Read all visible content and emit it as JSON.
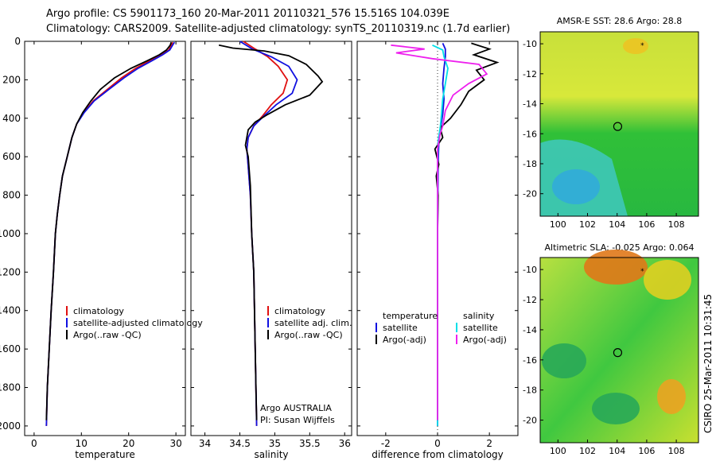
{
  "header": {
    "line1": "Argo profile: CS 5901173_160 20-Mar-2011 20110321_576 15.516S 104.039E",
    "line2": "Climatology: CARS2009. Satellite-adjusted climatology: synTS_20110319.nc (1.7d earlier)"
  },
  "side_label": "CSIRO 25-Mar-2011 10:31:45",
  "colors": {
    "climatology": "#e01010",
    "satellite": "#1010e0",
    "argo": "#000000",
    "sal_sat": "#00e0e8",
    "sal_argo": "#ee20ee"
  },
  "chart_data": [
    {
      "type": "line",
      "xlabel": "temperature",
      "ylabel": "",
      "xlim": [
        -2,
        32
      ],
      "ylim": [
        2050,
        0
      ],
      "x_ticks": [
        0,
        10,
        20,
        30
      ],
      "y_ticks": [
        0,
        200,
        400,
        600,
        800,
        1000,
        1200,
        1400,
        1600,
        1800,
        2000
      ],
      "legend": [
        "climatology",
        "satellite-adjusted climatology",
        "Argo(..raw -QC)"
      ],
      "series": [
        {
          "name": "climatology",
          "points": [
            [
              29.3,
              5
            ],
            [
              29,
              20
            ],
            [
              28.5,
              45
            ],
            [
              27,
              70
            ],
            [
              24.5,
              100
            ],
            [
              21.5,
              140
            ],
            [
              18.5,
              190
            ],
            [
              15.5,
              250
            ],
            [
              12.5,
              310
            ],
            [
              10.5,
              370
            ],
            [
              9,
              430
            ],
            [
              8,
              500
            ],
            [
              7,
              600
            ],
            [
              6,
              700
            ],
            [
              5.4,
              800
            ],
            [
              4.9,
              900
            ],
            [
              4.5,
              1000
            ],
            [
              4.1,
              1200
            ],
            [
              3.6,
              1400
            ],
            [
              3.2,
              1600
            ],
            [
              2.8,
              1800
            ],
            [
              2.6,
              2000
            ]
          ]
        },
        {
          "name": "satellite-adjusted climatology",
          "points": [
            [
              29.7,
              5
            ],
            [
              29.3,
              20
            ],
            [
              28.7,
              45
            ],
            [
              27.2,
              70
            ],
            [
              25,
              100
            ],
            [
              22,
              140
            ],
            [
              19,
              190
            ],
            [
              15.8,
              250
            ],
            [
              12.7,
              310
            ],
            [
              10.6,
              370
            ],
            [
              9,
              430
            ],
            [
              8,
              500
            ],
            [
              7,
              600
            ],
            [
              6,
              700
            ],
            [
              5.4,
              800
            ],
            [
              4.9,
              900
            ],
            [
              4.5,
              1000
            ],
            [
              4.1,
              1200
            ],
            [
              3.6,
              1400
            ],
            [
              3.2,
              1600
            ],
            [
              2.8,
              1800
            ],
            [
              2.6,
              2000
            ]
          ]
        },
        {
          "name": "Argo(..raw -QC)",
          "points": [
            [
              29,
              5
            ],
            [
              28.8,
              20
            ],
            [
              28,
              45
            ],
            [
              26.5,
              70
            ],
            [
              24,
              100
            ],
            [
              20.5,
              140
            ],
            [
              17,
              190
            ],
            [
              14,
              250
            ],
            [
              12,
              310
            ],
            [
              10.3,
              370
            ],
            [
              9,
              430
            ],
            [
              8,
              500
            ],
            [
              7,
              600
            ],
            [
              6,
              700
            ],
            [
              5.4,
              800
            ],
            [
              4.9,
              900
            ],
            [
              4.5,
              1000
            ],
            [
              4.1,
              1200
            ],
            [
              3.6,
              1400
            ],
            [
              3.2,
              1600
            ],
            [
              2.8,
              1800
            ],
            [
              2.6,
              1970
            ]
          ]
        }
      ]
    },
    {
      "type": "line",
      "xlabel": "salinity",
      "ylabel": "",
      "xlim": [
        33.8,
        36.1
      ],
      "ylim": [
        2050,
        0
      ],
      "x_ticks": [
        34,
        34.5,
        35,
        35.5,
        36
      ],
      "legend": [
        "climatology",
        "satellite adj. clim.",
        "Argo(..raw -QC)"
      ],
      "annotation": [
        "Argo AUSTRALIA",
        "PI: Susan Wijffels"
      ],
      "series": [
        {
          "name": "climatology",
          "points": [
            [
              34.55,
              0
            ],
            [
              34.72,
              40
            ],
            [
              34.9,
              80
            ],
            [
              35.05,
              130
            ],
            [
              35.18,
              200
            ],
            [
              35.12,
              270
            ],
            [
              34.95,
              330
            ],
            [
              34.82,
              390
            ],
            [
              34.7,
              440
            ],
            [
              34.62,
              500
            ],
            [
              34.6,
              560
            ],
            [
              34.62,
              650
            ],
            [
              34.65,
              800
            ],
            [
              34.67,
              1000
            ],
            [
              34.7,
              1200
            ],
            [
              34.71,
              1400
            ],
            [
              34.72,
              1600
            ],
            [
              34.73,
              1800
            ],
            [
              34.74,
              2000
            ]
          ]
        },
        {
          "name": "satellite adj. clim.",
          "points": [
            [
              34.5,
              0
            ],
            [
              34.68,
              40
            ],
            [
              34.95,
              80
            ],
            [
              35.2,
              130
            ],
            [
              35.32,
              200
            ],
            [
              35.25,
              270
            ],
            [
              35.02,
              330
            ],
            [
              34.84,
              390
            ],
            [
              34.7,
              440
            ],
            [
              34.62,
              500
            ],
            [
              34.6,
              560
            ],
            [
              34.62,
              650
            ],
            [
              34.65,
              800
            ],
            [
              34.67,
              1000
            ],
            [
              34.7,
              1200
            ],
            [
              34.71,
              1400
            ],
            [
              34.72,
              1600
            ],
            [
              34.73,
              1800
            ],
            [
              34.74,
              2000
            ]
          ]
        },
        {
          "name": "Argo(..raw -QC)",
          "points": [
            [
              34.2,
              20
            ],
            [
              34.4,
              35
            ],
            [
              34.85,
              50
            ],
            [
              35.2,
              75
            ],
            [
              35.45,
              120
            ],
            [
              35.62,
              180
            ],
            [
              35.68,
              210
            ],
            [
              35.5,
              280
            ],
            [
              35.15,
              330
            ],
            [
              34.9,
              380
            ],
            [
              34.72,
              420
            ],
            [
              34.62,
              460
            ],
            [
              34.58,
              540
            ],
            [
              34.62,
              600
            ],
            [
              34.65,
              750
            ],
            [
              34.67,
              1000
            ],
            [
              34.7,
              1200
            ],
            [
              34.71,
              1400
            ],
            [
              34.72,
              1600
            ],
            [
              34.73,
              1800
            ],
            [
              34.74,
              1970
            ]
          ]
        }
      ]
    },
    {
      "type": "line",
      "xlabel": "difference from climatology",
      "ylabel": "",
      "xlim": [
        -3.1,
        3.1
      ],
      "ylim": [
        2050,
        0
      ],
      "x_ticks": [
        -2,
        0,
        2
      ],
      "legend": [
        "temperature",
        "satellite",
        "Argo(-adj)",
        "salinity",
        "satellite",
        "Argo(-adj)"
      ],
      "series": [
        {
          "name": "temperature satellite",
          "points": [
            [
              0.2,
              10
            ],
            [
              0.3,
              40
            ],
            [
              0.3,
              80
            ],
            [
              0.25,
              140
            ],
            [
              0.2,
              220
            ],
            [
              0.25,
              300
            ],
            [
              0.2,
              380
            ],
            [
              0.12,
              450
            ],
            [
              0.05,
              520
            ],
            [
              0.02,
              650
            ],
            [
              0,
              1000
            ],
            [
              0,
              2000
            ]
          ]
        },
        {
          "name": "temperature Argo(-adj)",
          "points": [
            [
              1.3,
              10
            ],
            [
              2.0,
              40
            ],
            [
              1.4,
              70
            ],
            [
              2.3,
              110
            ],
            [
              1.5,
              150
            ],
            [
              1.8,
              200
            ],
            [
              1.2,
              260
            ],
            [
              0.9,
              330
            ],
            [
              0.5,
              400
            ],
            [
              0.1,
              450
            ],
            [
              0.2,
              500
            ],
            [
              -0.1,
              560
            ],
            [
              0.05,
              640
            ],
            [
              -0.05,
              700
            ],
            [
              0.02,
              800
            ],
            [
              0,
              1000
            ],
            [
              0,
              1970
            ]
          ]
        },
        {
          "name": "salinity satellite",
          "points": [
            [
              -0.2,
              20
            ],
            [
              0.2,
              45
            ],
            [
              0.25,
              80
            ],
            [
              0.4,
              140
            ],
            [
              0.3,
              220
            ],
            [
              0.2,
              300
            ],
            [
              0.15,
              380
            ],
            [
              0.1,
              450
            ],
            [
              0.02,
              520
            ],
            [
              0,
              650
            ],
            [
              0,
              1000
            ],
            [
              0,
              2000
            ]
          ]
        },
        {
          "name": "salinity Argo(-adj)",
          "points": [
            [
              -1.8,
              20
            ],
            [
              -0.5,
              40
            ],
            [
              -1.6,
              60
            ],
            [
              -0.2,
              90
            ],
            [
              1.6,
              120
            ],
            [
              1.9,
              170
            ],
            [
              1.2,
              220
            ],
            [
              0.6,
              280
            ],
            [
              0.3,
              360
            ],
            [
              0.2,
              440
            ],
            [
              0.1,
              480
            ],
            [
              0,
              560
            ],
            [
              0,
              700
            ],
            [
              0,
              1000
            ],
            [
              0,
              1970
            ]
          ]
        }
      ]
    },
    {
      "type": "heatmap",
      "title": "AMSR-E SST: 28.6 Argo: 28.8",
      "xlim": [
        98.8,
        109.5
      ],
      "ylim": [
        -21.5,
        -9.2
      ],
      "x_ticks": [
        100,
        102,
        104,
        106,
        108
      ],
      "y_ticks": [
        -10,
        -12,
        -14,
        -16,
        -18,
        -20
      ],
      "argo_marker": [
        104.039,
        -15.516
      ]
    },
    {
      "type": "heatmap",
      "title": "Altimetric SLA: -0.025 Argo: 0.064",
      "xlim": [
        98.8,
        109.5
      ],
      "ylim": [
        -21.5,
        -9.2
      ],
      "x_ticks": [
        100,
        102,
        104,
        106,
        108
      ],
      "y_ticks": [
        -10,
        -12,
        -14,
        -16,
        -18,
        -20
      ],
      "argo_marker": [
        104.039,
        -15.516
      ]
    }
  ]
}
